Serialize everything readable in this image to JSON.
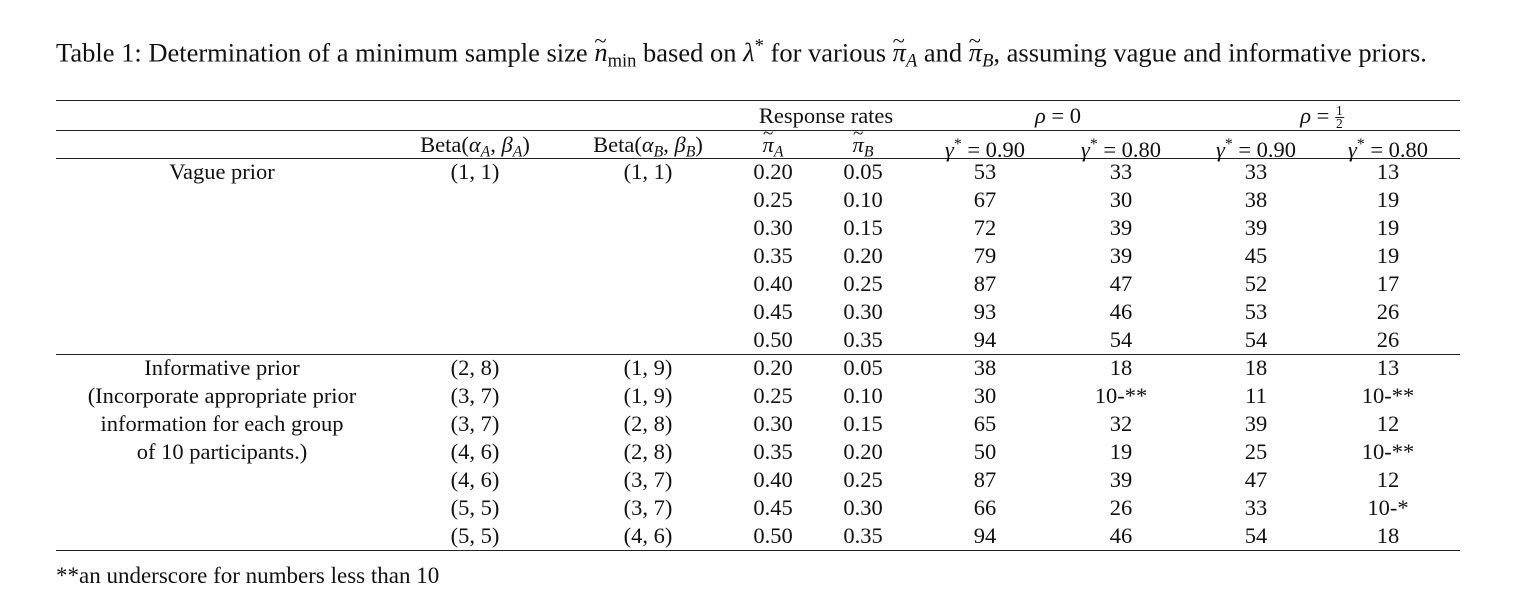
{
  "caption": {
    "prefix": "Table 1: Determination of a minimum sample size",
    "n_symbol": "n",
    "n_sub": "min",
    "mid1": "based on",
    "lambda": "λ",
    "star": "*",
    "mid2": "for various",
    "pi": "π",
    "A": "A",
    "and": "and",
    "B": "B",
    "suffix": ", assuming vague and informative priors."
  },
  "header": {
    "response_rates": "Response rates",
    "rho0_sym": "ρ",
    "rho0_val": "= 0",
    "rhohalf_sym": "ρ",
    "rhohalf_eq": "=",
    "rhohalf_num": "1",
    "rhohalf_den": "2",
    "beta_A": "Beta(αA, βA)",
    "beta_B": "Beta(αB, βB)",
    "beta_word": "Beta(",
    "alpha": "α",
    "beta": "β",
    "close": ")",
    "pi_A": "π",
    "pi_B": "π",
    "gamma": "γ",
    "g90": "= 0.90",
    "g80": "= 0.80"
  },
  "groups": [
    {
      "label_lines": [
        "Vague prior"
      ],
      "rows": [
        {
          "betaA": "(1, 1)",
          "betaB": "(1, 1)",
          "piA": "0.20",
          "piB": "0.05",
          "r0_90": "53",
          "r0_80": "33",
          "rh_90": "33",
          "rh_80": "13"
        },
        {
          "betaA": "",
          "betaB": "",
          "piA": "0.25",
          "piB": "0.10",
          "r0_90": "67",
          "r0_80": "30",
          "rh_90": "38",
          "rh_80": "19"
        },
        {
          "betaA": "",
          "betaB": "",
          "piA": "0.30",
          "piB": "0.15",
          "r0_90": "72",
          "r0_80": "39",
          "rh_90": "39",
          "rh_80": "19"
        },
        {
          "betaA": "",
          "betaB": "",
          "piA": "0.35",
          "piB": "0.20",
          "r0_90": "79",
          "r0_80": "39",
          "rh_90": "45",
          "rh_80": "19"
        },
        {
          "betaA": "",
          "betaB": "",
          "piA": "0.40",
          "piB": "0.25",
          "r0_90": "87",
          "r0_80": "47",
          "rh_90": "52",
          "rh_80": "17"
        },
        {
          "betaA": "",
          "betaB": "",
          "piA": "0.45",
          "piB": "0.30",
          "r0_90": "93",
          "r0_80": "46",
          "rh_90": "53",
          "rh_80": "26"
        },
        {
          "betaA": "",
          "betaB": "",
          "piA": "0.50",
          "piB": "0.35",
          "r0_90": "94",
          "r0_80": "54",
          "rh_90": "54",
          "rh_80": "26"
        }
      ]
    },
    {
      "label_lines": [
        "Informative prior",
        "(Incorporate appropriate prior",
        "information for each group",
        "of 10 participants.)"
      ],
      "rows": [
        {
          "betaA": "(2, 8)",
          "betaB": "(1, 9)",
          "piA": "0.20",
          "piB": "0.05",
          "r0_90": "38",
          "r0_80": "18",
          "rh_90": "18",
          "rh_80": "13"
        },
        {
          "betaA": "(3, 7)",
          "betaB": "(1, 9)",
          "piA": "0.25",
          "piB": "0.10",
          "r0_90": "30",
          "r0_80": "10-**",
          "rh_90": "11",
          "rh_80": "10-**"
        },
        {
          "betaA": "(3, 7)",
          "betaB": "(2, 8)",
          "piA": "0.30",
          "piB": "0.15",
          "r0_90": "65",
          "r0_80": "32",
          "rh_90": "39",
          "rh_80": "12"
        },
        {
          "betaA": "(4, 6)",
          "betaB": "(2, 8)",
          "piA": "0.35",
          "piB": "0.20",
          "r0_90": "50",
          "r0_80": "19",
          "rh_90": "25",
          "rh_80": "10-**"
        },
        {
          "betaA": "(4, 6)",
          "betaB": "(3, 7)",
          "piA": "0.40",
          "piB": "0.25",
          "r0_90": "87",
          "r0_80": "39",
          "rh_90": "47",
          "rh_80": "12"
        },
        {
          "betaA": "(5, 5)",
          "betaB": "(3, 7)",
          "piA": "0.45",
          "piB": "0.30",
          "r0_90": "66",
          "r0_80": "26",
          "rh_90": "33",
          "rh_80": "10-*"
        },
        {
          "betaA": "(5, 5)",
          "betaB": "(4, 6)",
          "piA": "0.50",
          "piB": "0.35",
          "r0_90": "94",
          "r0_80": "46",
          "rh_90": "54",
          "rh_80": "18"
        }
      ]
    }
  ],
  "footnote": "**an underscore for numbers less than 10"
}
